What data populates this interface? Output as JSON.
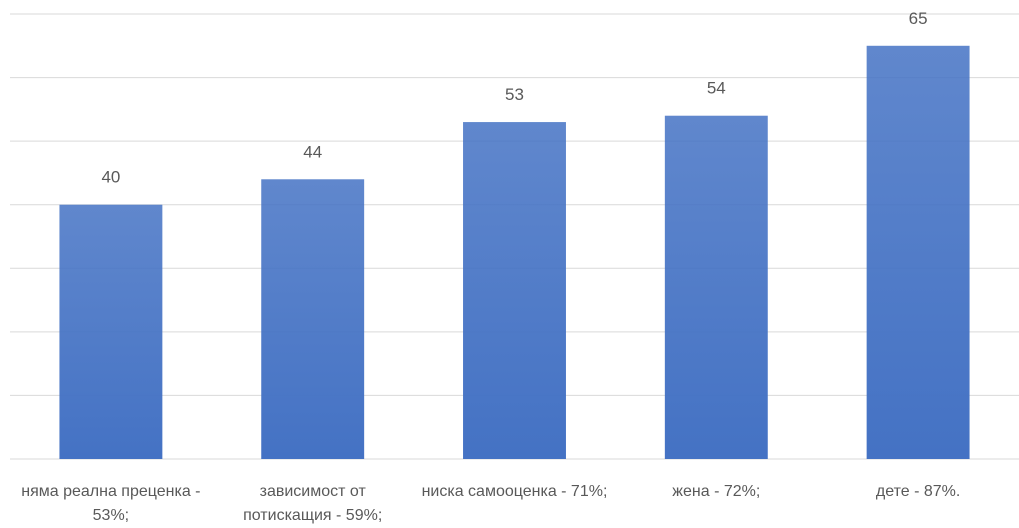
{
  "chart_data": {
    "type": "bar",
    "categories": [
      "няма реална преценка - 53%;",
      "зависимост от потискащия - 59%;",
      "ниска самооценка - 71%;",
      "жена - 72%;",
      "дете - 87%."
    ],
    "values": [
      40,
      44,
      53,
      54,
      65
    ],
    "color": "#4472c4",
    "ylim": [
      0,
      70
    ],
    "yticks": [
      0,
      10,
      20,
      30,
      40,
      50,
      60,
      70
    ],
    "grid": true
  }
}
